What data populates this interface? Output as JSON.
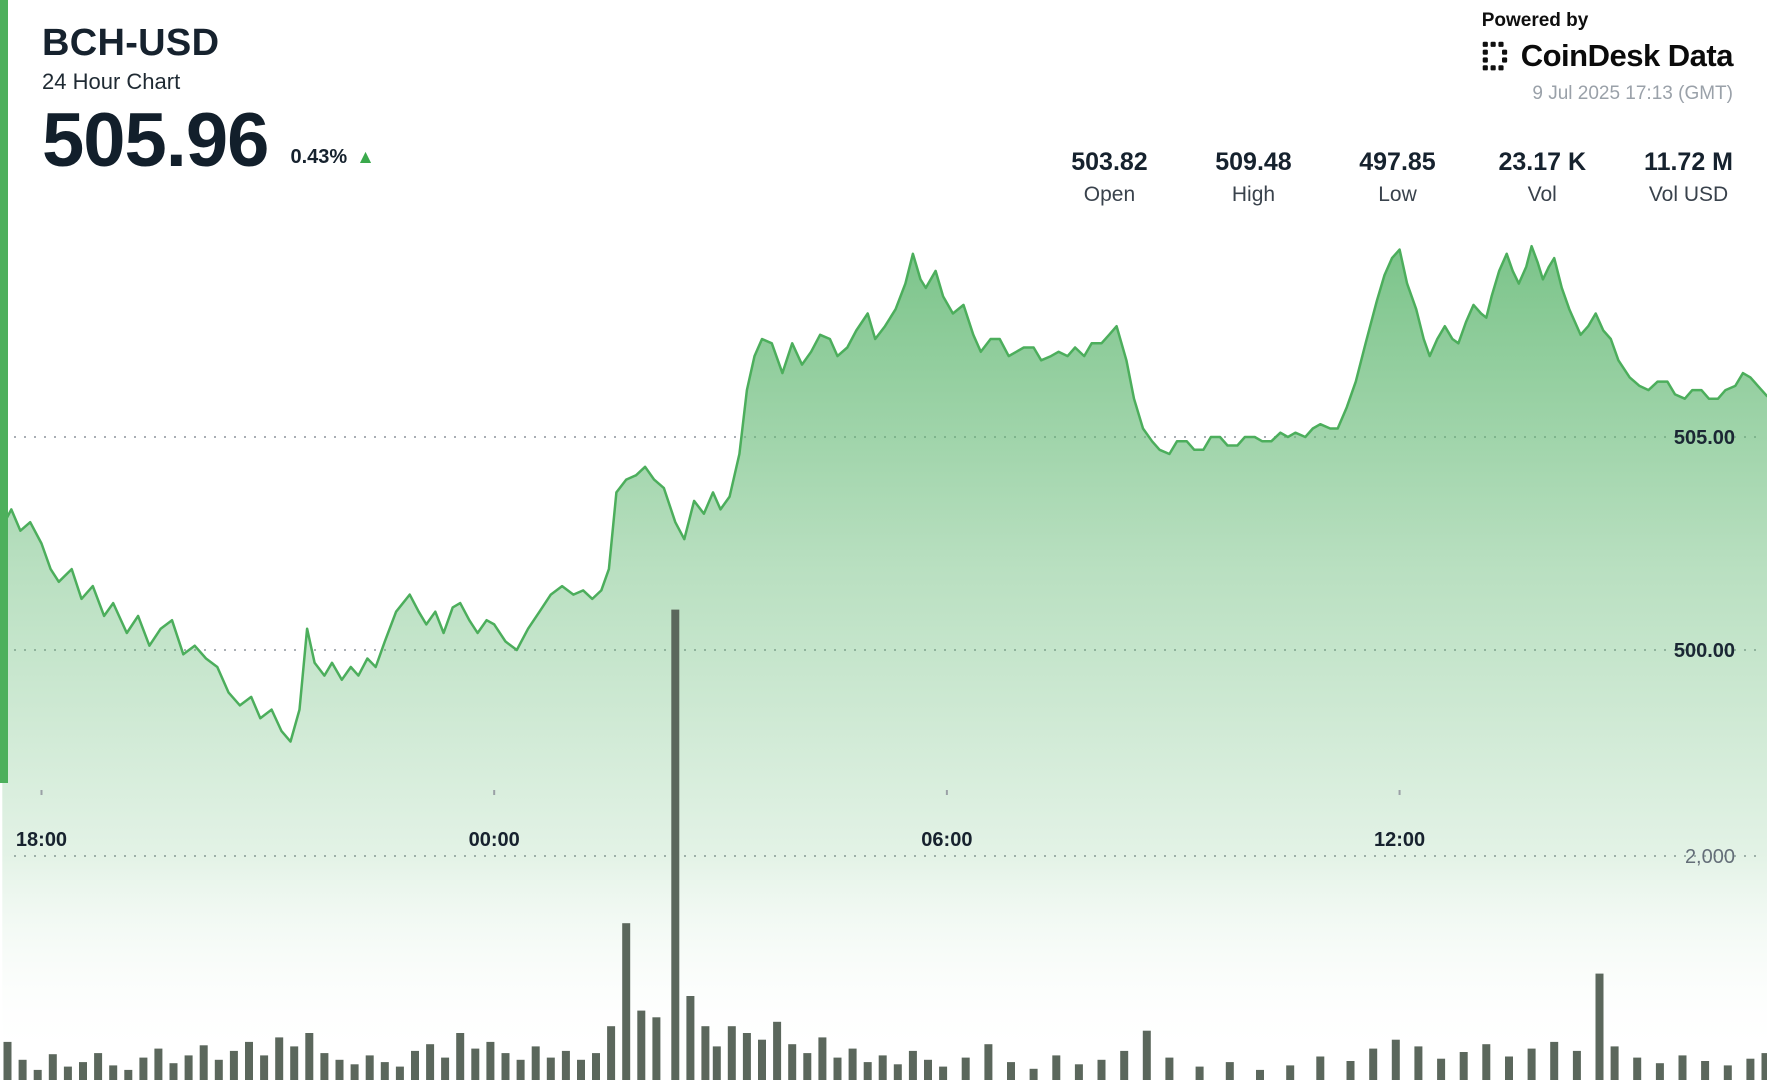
{
  "header": {
    "symbol": "BCH-USD",
    "subtitle": "24 Hour Chart",
    "price": "505.96",
    "change_pct": "0.43%",
    "change_direction": "up"
  },
  "icons": {
    "up_triangle": "▲"
  },
  "branding": {
    "powered_by": "Powered by",
    "brand": "CoinDesk Data",
    "timestamp": "9 Jul 2025 17:13 (GMT)"
  },
  "stats": [
    {
      "value": "503.82",
      "label": "Open"
    },
    {
      "value": "509.48",
      "label": "High"
    },
    {
      "value": "497.85",
      "label": "Low"
    },
    {
      "value": "23.17 K",
      "label": "Vol"
    },
    {
      "value": "11.72 M",
      "label": "Vol USD"
    }
  ],
  "colors": {
    "accent": "#4db05c",
    "line": "#4cae5c",
    "area_top": "#63b974",
    "volume_bar": "#5b675c",
    "up": "#3aa94c"
  },
  "chart_data": {
    "type": "area+bar",
    "title": "BCH-USD 24 Hour Chart",
    "legend": "off",
    "grid": "dotted",
    "x_axis": {
      "unit": "time (GMT), hours >24 are next day",
      "domain_hours": [
        17.45,
        40.87
      ],
      "ticks": [
        {
          "label": "18:00",
          "hour": 18
        },
        {
          "label": "00:00",
          "hour": 24
        },
        {
          "label": "06:00",
          "hour": 30
        },
        {
          "label": "12:00",
          "hour": 36
        }
      ]
    },
    "price_axis": {
      "side": "right",
      "approx_range": [
        496.5,
        510.5
      ],
      "ticks": [
        {
          "label": "505.00",
          "value": 505
        },
        {
          "label": "500.00",
          "value": 500
        }
      ]
    },
    "volume_axis": {
      "side": "right",
      "ticks": [
        {
          "label": "2,000",
          "value": 2000
        }
      ]
    },
    "price_series": {
      "name": "BCH-USD price",
      "points": [
        [
          17.48,
          502.9
        ],
        [
          17.6,
          503.3
        ],
        [
          17.72,
          502.8
        ],
        [
          17.85,
          503.0
        ],
        [
          18.0,
          502.5
        ],
        [
          18.12,
          501.9
        ],
        [
          18.23,
          501.6
        ],
        [
          18.4,
          501.9
        ],
        [
          18.53,
          501.2
        ],
        [
          18.68,
          501.5
        ],
        [
          18.83,
          500.8
        ],
        [
          18.95,
          501.1
        ],
        [
          19.13,
          500.4
        ],
        [
          19.28,
          500.8
        ],
        [
          19.43,
          500.1
        ],
        [
          19.58,
          500.5
        ],
        [
          19.73,
          500.7
        ],
        [
          19.88,
          499.9
        ],
        [
          20.03,
          500.1
        ],
        [
          20.18,
          499.8
        ],
        [
          20.33,
          499.6
        ],
        [
          20.48,
          499.0
        ],
        [
          20.63,
          498.7
        ],
        [
          20.78,
          498.9
        ],
        [
          20.9,
          498.4
        ],
        [
          21.05,
          498.6
        ],
        [
          21.18,
          498.1
        ],
        [
          21.3,
          497.85
        ],
        [
          21.42,
          498.6
        ],
        [
          21.52,
          500.5
        ],
        [
          21.62,
          499.7
        ],
        [
          21.75,
          499.4
        ],
        [
          21.85,
          499.7
        ],
        [
          21.98,
          499.3
        ],
        [
          22.1,
          499.6
        ],
        [
          22.2,
          499.4
        ],
        [
          22.32,
          499.8
        ],
        [
          22.43,
          499.6
        ],
        [
          22.55,
          500.2
        ],
        [
          22.7,
          500.9
        ],
        [
          22.88,
          501.3
        ],
        [
          23.0,
          500.9
        ],
        [
          23.1,
          500.6
        ],
        [
          23.22,
          500.9
        ],
        [
          23.33,
          500.4
        ],
        [
          23.45,
          501.0
        ],
        [
          23.55,
          501.1
        ],
        [
          23.67,
          500.7
        ],
        [
          23.78,
          500.4
        ],
        [
          23.9,
          500.7
        ],
        [
          24.0,
          500.6
        ],
        [
          24.15,
          500.2
        ],
        [
          24.3,
          500.0
        ],
        [
          24.45,
          500.5
        ],
        [
          24.6,
          500.9
        ],
        [
          24.75,
          501.3
        ],
        [
          24.9,
          501.5
        ],
        [
          25.05,
          501.3
        ],
        [
          25.18,
          501.4
        ],
        [
          25.3,
          501.2
        ],
        [
          25.42,
          501.4
        ],
        [
          25.52,
          501.9
        ],
        [
          25.62,
          503.7
        ],
        [
          25.75,
          504.0
        ],
        [
          25.88,
          504.1
        ],
        [
          26.0,
          504.3
        ],
        [
          26.12,
          504.0
        ],
        [
          26.25,
          503.8
        ],
        [
          26.4,
          503.0
        ],
        [
          26.52,
          502.6
        ],
        [
          26.65,
          503.5
        ],
        [
          26.78,
          503.2
        ],
        [
          26.9,
          503.7
        ],
        [
          27.0,
          503.3
        ],
        [
          27.12,
          503.6
        ],
        [
          27.25,
          504.6
        ],
        [
          27.35,
          506.1
        ],
        [
          27.45,
          506.9
        ],
        [
          27.55,
          507.3
        ],
        [
          27.68,
          507.2
        ],
        [
          27.82,
          506.5
        ],
        [
          27.95,
          507.2
        ],
        [
          28.08,
          506.7
        ],
        [
          28.2,
          507.0
        ],
        [
          28.32,
          507.4
        ],
        [
          28.45,
          507.3
        ],
        [
          28.55,
          506.9
        ],
        [
          28.68,
          507.1
        ],
        [
          28.8,
          507.5
        ],
        [
          28.95,
          507.9
        ],
        [
          29.05,
          507.3
        ],
        [
          29.18,
          507.6
        ],
        [
          29.32,
          508.0
        ],
        [
          29.45,
          508.6
        ],
        [
          29.55,
          509.3
        ],
        [
          29.65,
          508.7
        ],
        [
          29.72,
          508.5
        ],
        [
          29.85,
          508.9
        ],
        [
          29.95,
          508.3
        ],
        [
          30.08,
          507.9
        ],
        [
          30.22,
          508.1
        ],
        [
          30.35,
          507.4
        ],
        [
          30.45,
          507.0
        ],
        [
          30.58,
          507.3
        ],
        [
          30.7,
          507.3
        ],
        [
          30.82,
          506.9
        ],
        [
          30.92,
          507.0
        ],
        [
          31.02,
          507.1
        ],
        [
          31.15,
          507.1
        ],
        [
          31.25,
          506.8
        ],
        [
          31.38,
          506.9
        ],
        [
          31.48,
          507.0
        ],
        [
          31.6,
          506.9
        ],
        [
          31.7,
          507.1
        ],
        [
          31.82,
          506.9
        ],
        [
          31.92,
          507.2
        ],
        [
          32.05,
          507.2
        ],
        [
          32.15,
          507.4
        ],
        [
          32.25,
          507.6
        ],
        [
          32.38,
          506.8
        ],
        [
          32.48,
          505.9
        ],
        [
          32.6,
          505.2
        ],
        [
          32.72,
          504.9
        ],
        [
          32.82,
          504.7
        ],
        [
          32.95,
          504.6
        ],
        [
          33.05,
          504.9
        ],
        [
          33.18,
          504.9
        ],
        [
          33.28,
          504.7
        ],
        [
          33.4,
          504.7
        ],
        [
          33.5,
          505.0
        ],
        [
          33.62,
          505.0
        ],
        [
          33.72,
          504.8
        ],
        [
          33.85,
          504.8
        ],
        [
          33.95,
          505.0
        ],
        [
          34.08,
          505.0
        ],
        [
          34.18,
          504.9
        ],
        [
          34.3,
          504.9
        ],
        [
          34.42,
          505.1
        ],
        [
          34.52,
          505.0
        ],
        [
          34.62,
          505.1
        ],
        [
          34.75,
          505.0
        ],
        [
          34.85,
          505.2
        ],
        [
          34.95,
          505.3
        ],
        [
          35.08,
          505.2
        ],
        [
          35.18,
          505.2
        ],
        [
          35.3,
          505.7
        ],
        [
          35.42,
          506.3
        ],
        [
          35.55,
          507.2
        ],
        [
          35.7,
          508.2
        ],
        [
          35.8,
          508.8
        ],
        [
          35.9,
          509.2
        ],
        [
          36.0,
          509.4
        ],
        [
          36.1,
          508.6
        ],
        [
          36.22,
          508.0
        ],
        [
          36.32,
          507.3
        ],
        [
          36.4,
          506.9
        ],
        [
          36.5,
          507.3
        ],
        [
          36.6,
          507.6
        ],
        [
          36.7,
          507.3
        ],
        [
          36.78,
          507.2
        ],
        [
          36.88,
          507.7
        ],
        [
          36.98,
          508.1
        ],
        [
          37.08,
          507.9
        ],
        [
          37.15,
          507.8
        ],
        [
          37.22,
          508.3
        ],
        [
          37.32,
          508.9
        ],
        [
          37.42,
          509.3
        ],
        [
          37.5,
          508.9
        ],
        [
          37.58,
          508.6
        ],
        [
          37.68,
          509.0
        ],
        [
          37.75,
          509.48
        ],
        [
          37.83,
          509.1
        ],
        [
          37.9,
          508.7
        ],
        [
          37.98,
          509.0
        ],
        [
          38.05,
          509.2
        ],
        [
          38.15,
          508.5
        ],
        [
          38.25,
          508.0
        ],
        [
          38.4,
          507.4
        ],
        [
          38.5,
          507.6
        ],
        [
          38.6,
          507.9
        ],
        [
          38.7,
          507.5
        ],
        [
          38.8,
          507.3
        ],
        [
          38.9,
          506.8
        ],
        [
          39.05,
          506.4
        ],
        [
          39.18,
          506.2
        ],
        [
          39.3,
          506.1
        ],
        [
          39.42,
          506.3
        ],
        [
          39.55,
          506.3
        ],
        [
          39.65,
          506.0
        ],
        [
          39.78,
          505.9
        ],
        [
          39.88,
          506.1
        ],
        [
          40.0,
          506.1
        ],
        [
          40.1,
          505.9
        ],
        [
          40.22,
          505.9
        ],
        [
          40.32,
          506.1
        ],
        [
          40.45,
          506.2
        ],
        [
          40.55,
          506.5
        ],
        [
          40.65,
          506.4
        ],
        [
          40.75,
          506.2
        ],
        [
          40.87,
          505.96
        ]
      ]
    },
    "volume_series": {
      "name": "Volume",
      "points": [
        [
          17.55,
          340
        ],
        [
          17.75,
          180
        ],
        [
          17.95,
          90
        ],
        [
          18.15,
          230
        ],
        [
          18.35,
          120
        ],
        [
          18.55,
          160
        ],
        [
          18.75,
          240
        ],
        [
          18.95,
          130
        ],
        [
          19.15,
          90
        ],
        [
          19.35,
          200
        ],
        [
          19.55,
          280
        ],
        [
          19.75,
          150
        ],
        [
          19.95,
          220
        ],
        [
          20.15,
          310
        ],
        [
          20.35,
          180
        ],
        [
          20.55,
          260
        ],
        [
          20.75,
          340
        ],
        [
          20.95,
          220
        ],
        [
          21.15,
          380
        ],
        [
          21.35,
          300
        ],
        [
          21.55,
          420
        ],
        [
          21.75,
          240
        ],
        [
          21.95,
          180
        ],
        [
          22.15,
          140
        ],
        [
          22.35,
          220
        ],
        [
          22.55,
          160
        ],
        [
          22.75,
          120
        ],
        [
          22.95,
          260
        ],
        [
          23.15,
          320
        ],
        [
          23.35,
          200
        ],
        [
          23.55,
          420
        ],
        [
          23.75,
          280
        ],
        [
          23.95,
          340
        ],
        [
          24.15,
          240
        ],
        [
          24.35,
          180
        ],
        [
          24.55,
          300
        ],
        [
          24.75,
          200
        ],
        [
          24.95,
          260
        ],
        [
          25.15,
          180
        ],
        [
          25.35,
          240
        ],
        [
          25.55,
          480
        ],
        [
          25.75,
          1400
        ],
        [
          25.95,
          620
        ],
        [
          26.15,
          560
        ],
        [
          26.4,
          4200
        ],
        [
          26.6,
          750
        ],
        [
          26.8,
          480
        ],
        [
          26.95,
          300
        ],
        [
          27.15,
          480
        ],
        [
          27.35,
          420
        ],
        [
          27.55,
          360
        ],
        [
          27.75,
          520
        ],
        [
          27.95,
          320
        ],
        [
          28.15,
          240
        ],
        [
          28.35,
          380
        ],
        [
          28.55,
          200
        ],
        [
          28.75,
          280
        ],
        [
          28.95,
          160
        ],
        [
          29.15,
          220
        ],
        [
          29.35,
          140
        ],
        [
          29.55,
          260
        ],
        [
          29.75,
          180
        ],
        [
          29.95,
          120
        ],
        [
          30.25,
          200
        ],
        [
          30.55,
          320
        ],
        [
          30.85,
          160
        ],
        [
          31.15,
          100
        ],
        [
          31.45,
          220
        ],
        [
          31.75,
          140
        ],
        [
          32.05,
          180
        ],
        [
          32.35,
          260
        ],
        [
          32.65,
          440
        ],
        [
          32.95,
          200
        ],
        [
          33.35,
          120
        ],
        [
          33.75,
          160
        ],
        [
          34.15,
          90
        ],
        [
          34.55,
          130
        ],
        [
          34.95,
          210
        ],
        [
          35.35,
          170
        ],
        [
          35.65,
          280
        ],
        [
          35.95,
          360
        ],
        [
          36.25,
          300
        ],
        [
          36.55,
          190
        ],
        [
          36.85,
          250
        ],
        [
          37.15,
          320
        ],
        [
          37.45,
          210
        ],
        [
          37.75,
          280
        ],
        [
          38.05,
          340
        ],
        [
          38.35,
          260
        ],
        [
          38.65,
          950
        ],
        [
          38.85,
          300
        ],
        [
          39.15,
          200
        ],
        [
          39.45,
          150
        ],
        [
          39.75,
          220
        ],
        [
          40.05,
          170
        ],
        [
          40.35,
          130
        ],
        [
          40.65,
          190
        ],
        [
          40.85,
          240
        ]
      ]
    }
  }
}
